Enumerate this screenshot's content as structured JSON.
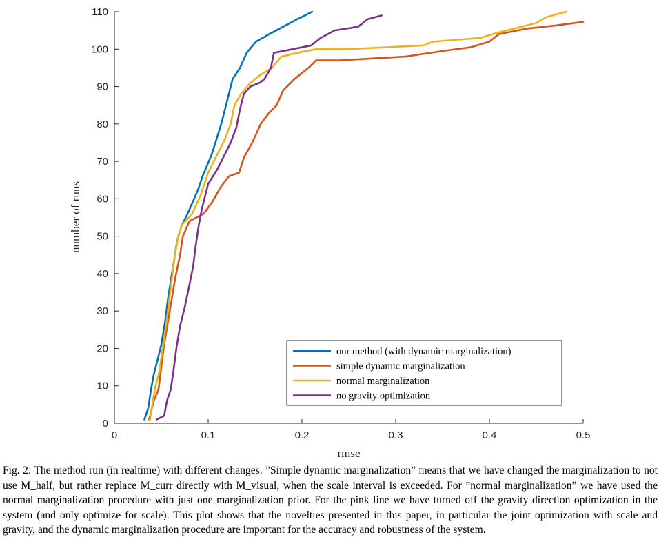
{
  "chart_data": {
    "type": "line",
    "xlabel": "rmse",
    "ylabel": "number of runs",
    "xlim": [
      0,
      0.5
    ],
    "ylim": [
      0,
      110
    ],
    "x_ticks": [
      "0",
      "0.1",
      "0.2",
      "0.3",
      "0.4",
      "0.5"
    ],
    "y_ticks": [
      "0",
      "10",
      "20",
      "30",
      "40",
      "50",
      "60",
      "70",
      "80",
      "90",
      "100",
      "110"
    ],
    "grid": false,
    "legend_position": "bottom-right",
    "series": [
      {
        "name": "our method (with dynamic marginalization)",
        "color": "#0072BD",
        "points": [
          [
            0.032,
            1
          ],
          [
            0.036,
            4
          ],
          [
            0.039,
            9
          ],
          [
            0.042,
            13
          ],
          [
            0.046,
            17
          ],
          [
            0.05,
            21
          ],
          [
            0.054,
            27
          ],
          [
            0.057,
            33
          ],
          [
            0.06,
            38
          ],
          [
            0.064,
            44
          ],
          [
            0.067,
            49
          ],
          [
            0.072,
            53
          ],
          [
            0.078,
            56
          ],
          [
            0.085,
            60
          ],
          [
            0.09,
            63
          ],
          [
            0.094,
            66
          ],
          [
            0.099,
            69
          ],
          [
            0.104,
            72
          ],
          [
            0.109,
            76
          ],
          [
            0.114,
            80
          ],
          [
            0.118,
            84
          ],
          [
            0.122,
            88
          ],
          [
            0.126,
            92
          ],
          [
            0.134,
            95
          ],
          [
            0.141,
            99
          ],
          [
            0.151,
            102
          ],
          [
            0.165,
            104
          ],
          [
            0.18,
            106
          ],
          [
            0.195,
            108
          ],
          [
            0.211,
            110
          ]
        ]
      },
      {
        "name": "simple dynamic marginalization",
        "color": "#D95319",
        "points": [
          [
            0.037,
            1
          ],
          [
            0.042,
            6
          ],
          [
            0.047,
            9
          ],
          [
            0.05,
            15
          ],
          [
            0.053,
            21
          ],
          [
            0.057,
            27
          ],
          [
            0.061,
            33
          ],
          [
            0.065,
            39
          ],
          [
            0.07,
            45
          ],
          [
            0.073,
            50
          ],
          [
            0.08,
            54
          ],
          [
            0.095,
            56
          ],
          [
            0.104,
            59
          ],
          [
            0.113,
            63
          ],
          [
            0.122,
            66
          ],
          [
            0.133,
            67
          ],
          [
            0.138,
            71
          ],
          [
            0.147,
            75
          ],
          [
            0.156,
            80
          ],
          [
            0.165,
            83
          ],
          [
            0.173,
            85
          ],
          [
            0.18,
            89
          ],
          [
            0.192,
            92
          ],
          [
            0.207,
            95
          ],
          [
            0.215,
            97
          ],
          [
            0.24,
            97
          ],
          [
            0.31,
            98
          ],
          [
            0.35,
            99.5
          ],
          [
            0.38,
            100.5
          ],
          [
            0.4,
            102
          ],
          [
            0.41,
            104
          ],
          [
            0.44,
            105.5
          ],
          [
            0.47,
            106.3
          ],
          [
            0.5,
            107.3
          ]
        ]
      },
      {
        "name": "normal marginalization",
        "color": "#EDB120",
        "points": [
          [
            0.038,
            1
          ],
          [
            0.041,
            6
          ],
          [
            0.044,
            10
          ],
          [
            0.048,
            14
          ],
          [
            0.052,
            21
          ],
          [
            0.056,
            28
          ],
          [
            0.06,
            36
          ],
          [
            0.064,
            44
          ],
          [
            0.068,
            50
          ],
          [
            0.072,
            53
          ],
          [
            0.083,
            56
          ],
          [
            0.092,
            61
          ],
          [
            0.1,
            67
          ],
          [
            0.108,
            71
          ],
          [
            0.118,
            76
          ],
          [
            0.124,
            80
          ],
          [
            0.128,
            85
          ],
          [
            0.135,
            88
          ],
          [
            0.145,
            91
          ],
          [
            0.155,
            93
          ],
          [
            0.168,
            95
          ],
          [
            0.178,
            98
          ],
          [
            0.195,
            99
          ],
          [
            0.215,
            100
          ],
          [
            0.25,
            100
          ],
          [
            0.33,
            101
          ],
          [
            0.34,
            102
          ],
          [
            0.39,
            103
          ],
          [
            0.41,
            104.5
          ],
          [
            0.43,
            105.7
          ],
          [
            0.45,
            107
          ],
          [
            0.46,
            108.5
          ],
          [
            0.482,
            110
          ]
        ]
      },
      {
        "name": "no gravity optimization",
        "color": "#7E2F8E",
        "points": [
          [
            0.045,
            1
          ],
          [
            0.053,
            2
          ],
          [
            0.056,
            6
          ],
          [
            0.06,
            9
          ],
          [
            0.063,
            14
          ],
          [
            0.066,
            20
          ],
          [
            0.07,
            26
          ],
          [
            0.075,
            31
          ],
          [
            0.08,
            37
          ],
          [
            0.084,
            42
          ],
          [
            0.087,
            48
          ],
          [
            0.09,
            53
          ],
          [
            0.093,
            57
          ],
          [
            0.1,
            64
          ],
          [
            0.11,
            68
          ],
          [
            0.118,
            72
          ],
          [
            0.124,
            75
          ],
          [
            0.13,
            79
          ],
          [
            0.134,
            84
          ],
          [
            0.138,
            88
          ],
          [
            0.145,
            90
          ],
          [
            0.155,
            91
          ],
          [
            0.16,
            92
          ],
          [
            0.167,
            95
          ],
          [
            0.17,
            99
          ],
          [
            0.19,
            100
          ],
          [
            0.21,
            101
          ],
          [
            0.22,
            103
          ],
          [
            0.235,
            105
          ],
          [
            0.26,
            106
          ],
          [
            0.27,
            108
          ],
          [
            0.285,
            109
          ]
        ]
      }
    ]
  },
  "caption": {
    "text": "Fig. 2: The method run (in realtime) with different changes. ”Simple dynamic marginalization” means that we have changed the marginalization to not use M_half, but rather replace M_curr directly with M_visual, when the scale interval is exceeded. For ”normal marginalization” we have used the normal marginalization procedure with just one marginalization prior. For the pink line we have turned off the gravity direction optimization in the system (and only optimize for scale). This plot shows that the novelties presented in this paper, in particular the joint optimization with scale and gravity, and the dynamic marginalization procedure are important for the accuracy and robustness of the system."
  }
}
